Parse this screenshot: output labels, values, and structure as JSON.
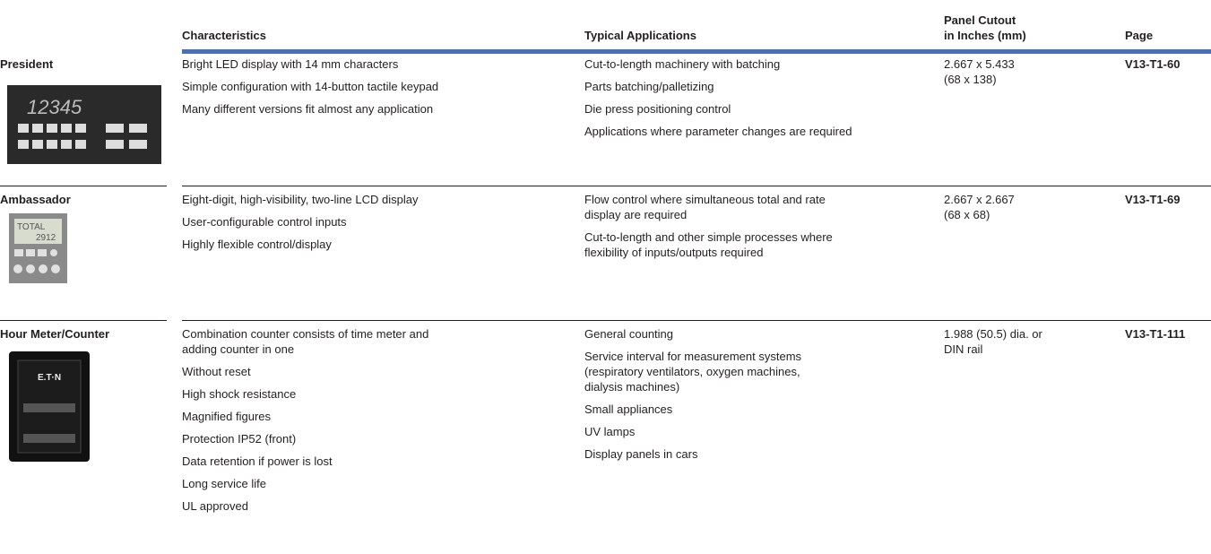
{
  "header": {
    "columns": [
      [
        "Characteristics"
      ],
      [
        "Typical Applications"
      ],
      [
        "Panel Cutout",
        "in Inches (mm)"
      ],
      [
        "Page"
      ]
    ]
  },
  "rows": [
    {
      "name": "President",
      "characteristics": [
        [
          "Bright LED display with 14 mm characters"
        ],
        [
          "Simple configuration with 14-button tactile keypad"
        ],
        [
          "Many different versions fit almost any application"
        ]
      ],
      "applications": [
        [
          "Cut-to-length machinery with batching"
        ],
        [
          "Parts batching/palletizing"
        ],
        [
          "Die press positioning control"
        ],
        [
          "Applications where parameter changes are required"
        ]
      ],
      "cutout": [
        "2.667 x 5.433",
        "(68 x 138)"
      ],
      "page": "V13-T1-60"
    },
    {
      "name": "Ambassador",
      "characteristics": [
        [
          "Eight-digit, high-visibility, two-line LCD display"
        ],
        [
          "User-configurable control inputs"
        ],
        [
          "Highly flexible control/display"
        ]
      ],
      "applications": [
        [
          "Flow control where simultaneous total and rate",
          "display are required"
        ],
        [
          "Cut-to-length and other simple processes where",
          "flexibility of inputs/outputs required"
        ]
      ],
      "cutout": [
        "2.667 x 2.667",
        "(68 x 68)"
      ],
      "page": "V13-T1-69"
    },
    {
      "name": "Hour Meter/Counter",
      "characteristics": [
        [
          "Combination counter consists of time meter and",
          "adding counter in one"
        ],
        [
          "Without reset"
        ],
        [
          "High shock resistance"
        ],
        [
          "Magnified figures"
        ],
        [
          "Protection IP52 (front)"
        ],
        [
          "Data retention if power is lost"
        ],
        [
          "Long service life"
        ],
        [
          "UL approved"
        ]
      ],
      "applications": [
        [
          "General counting"
        ],
        [
          "Service interval for measurement systems",
          "(respiratory ventilators, oxygen machines,",
          "dialysis machines)"
        ],
        [
          "Small appliances"
        ],
        [
          "UV lamps"
        ],
        [
          "Display panels in cars"
        ]
      ],
      "cutout": [
        "1.988 (50.5) dia. or",
        "DIN rail"
      ],
      "page": "V13-T1-111"
    }
  ]
}
